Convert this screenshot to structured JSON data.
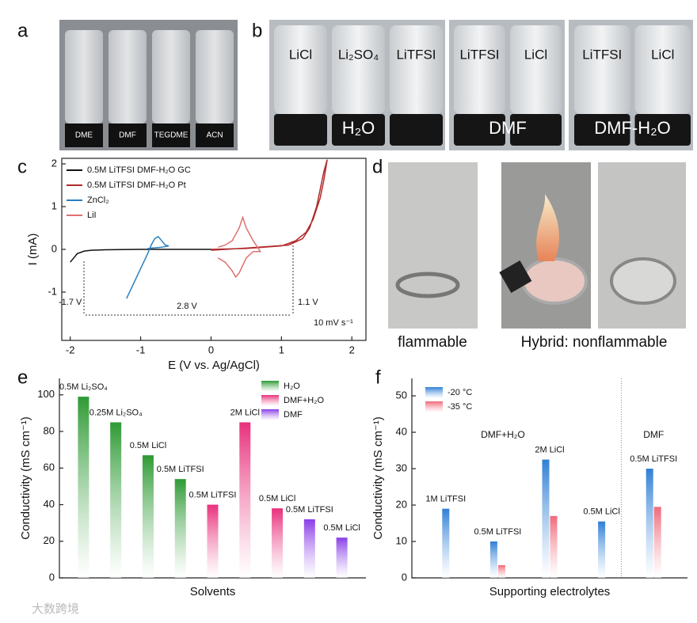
{
  "panel_labels": [
    "a",
    "b",
    "c",
    "d",
    "e",
    "f"
  ],
  "panel_a": {
    "vials": [
      "DME",
      "DMF",
      "TEGDME",
      "ACN"
    ]
  },
  "panel_b": {
    "groups": [
      {
        "caption": "H₂O",
        "salts": [
          "LiCl",
          "Li₂SO₄",
          "LiTFSI"
        ]
      },
      {
        "caption": "DMF",
        "salts": [
          "LiTFSI",
          "LiCl"
        ]
      },
      {
        "caption": "DMF-H₂O",
        "salts": [
          "LiTFSI",
          "LiCl"
        ]
      }
    ]
  },
  "panel_d": {
    "captions": [
      "flammable",
      "Hybrid: nonflammable"
    ]
  },
  "watermark": "大数跨境",
  "chart_data": [
    {
      "type": "line",
      "xlabel": "E (V vs. Ag/AgCl)",
      "ylabel": "I (mA)",
      "xlim": [
        -2.12,
        2.2
      ],
      "ylim": [
        -2.13,
        2.13
      ],
      "xticks": [
        -2,
        -1,
        0,
        1,
        2
      ],
      "yticks": [
        -1,
        0,
        1,
        2
      ],
      "annotations": [
        "-1.7 V",
        "1.1 V",
        "2.8 V",
        "10 mV s⁻¹"
      ],
      "series": [
        {
          "name": "0.5M LiTFSI DMF-H₂O GC",
          "color": "#111111",
          "x": [
            -2.0,
            -1.95,
            -1.9,
            -1.8,
            -1.7,
            -1.5,
            -1.0,
            -0.5,
            0.0
          ],
          "values": [
            -0.3,
            -0.2,
            -0.1,
            -0.04,
            -0.02,
            -0.01,
            0.0,
            0.0,
            0.0
          ]
        },
        {
          "name": "0.5M LiTFSI DMF-H₂O Pt",
          "color": "#b22a2a",
          "x": [
            0.0,
            0.5,
            1.0,
            1.2,
            1.35,
            1.45,
            1.55,
            1.6,
            1.65,
            1.6,
            1.5,
            1.4,
            1.3,
            1.1,
            0.5,
            0.0
          ],
          "values": [
            0.0,
            0.02,
            0.08,
            0.2,
            0.4,
            0.7,
            1.2,
            1.6,
            2.1,
            1.8,
            1.0,
            0.5,
            0.25,
            0.1,
            0.03,
            -0.02
          ]
        },
        {
          "name": "ZnCl₂",
          "color": "#2a7fc0",
          "x": [
            -1.2,
            -1.1,
            -1.0,
            -0.9,
            -0.85,
            -0.8,
            -0.75,
            -0.7,
            -0.65,
            -0.6,
            -0.7,
            -0.9
          ],
          "values": [
            -1.15,
            -0.8,
            -0.45,
            -0.1,
            0.1,
            0.25,
            0.3,
            0.2,
            0.1,
            0.08,
            0.05,
            0.02
          ]
        },
        {
          "name": "LiI",
          "color": "#e07070",
          "x": [
            0.1,
            0.2,
            0.3,
            0.35,
            0.4,
            0.5,
            0.6,
            0.7,
            0.6,
            0.5,
            0.45,
            0.4,
            0.3,
            0.2,
            0.1
          ],
          "values": [
            -0.2,
            -0.3,
            -0.5,
            -0.65,
            -0.55,
            -0.2,
            -0.05,
            -0.05,
            0.2,
            0.5,
            0.75,
            0.5,
            0.2,
            0.1,
            0.05
          ]
        }
      ]
    },
    {
      "type": "bar",
      "xlabel": "Solvents",
      "ylabel": "Conductivity (mS cm⁻¹)",
      "ylim": [
        0,
        109
      ],
      "yticks": [
        0,
        20,
        40,
        60,
        80,
        100
      ],
      "categories": [
        "0.5M Li₂SO₄",
        "0.25M Li₂SO₄",
        "0.5M LiCl",
        "0.5M LiTFSI",
        "0.5M LiTFSI",
        "2M LiCl",
        "0.5M LiCl",
        "0.5M LiTFSI",
        "0.5M LiCl"
      ],
      "series": [
        {
          "name": "H₂O",
          "color": "#2e9a34",
          "values": [
            99,
            85,
            67,
            54,
            null,
            null,
            null,
            null,
            null
          ]
        },
        {
          "name": "DMF+H₂O",
          "color": "#e8307a",
          "values": [
            null,
            null,
            null,
            null,
            40,
            85,
            38,
            null,
            null
          ]
        },
        {
          "name": "DMF",
          "color": "#8a3ee8",
          "values": [
            null,
            null,
            null,
            null,
            null,
            null,
            null,
            32,
            22
          ]
        }
      ]
    },
    {
      "type": "bar",
      "xlabel": "Supporting electrolytes",
      "ylabel": "Conductivity (mS cm⁻¹)",
      "ylim": [
        0,
        54.8
      ],
      "yticks": [
        0,
        10,
        20,
        30,
        40,
        50
      ],
      "annotations": [
        "DMF+H₂O",
        "DMF"
      ],
      "categories": [
        "1M LiTFSI",
        "0.5M LiTFSI",
        "2M LiCl",
        "0.5M LiCl",
        "0.5M LiTFSI"
      ],
      "series": [
        {
          "name": "-20 °C",
          "color": "#2f7fd6",
          "values": [
            19,
            10,
            32.5,
            15.5,
            30
          ]
        },
        {
          "name": "-35 °C",
          "color": "#ef6a7a",
          "values": [
            null,
            3.5,
            17,
            null,
            19.5
          ]
        }
      ]
    }
  ]
}
